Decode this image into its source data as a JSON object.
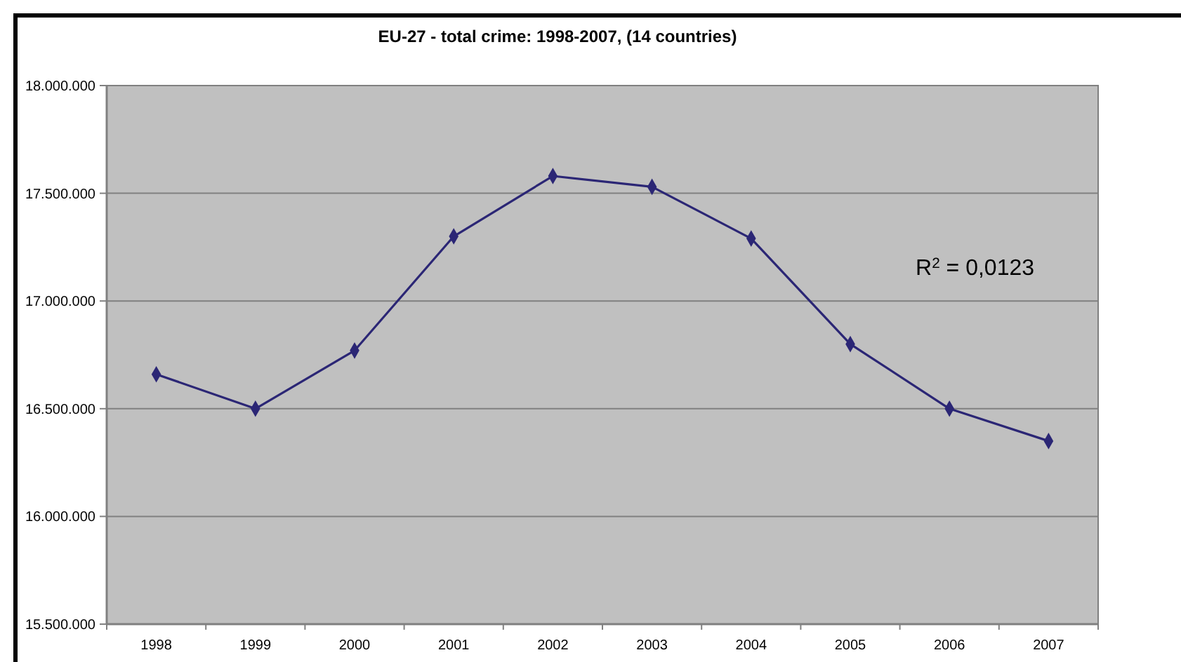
{
  "chart_data": {
    "type": "line",
    "title": "EU-27 - total crime: 1998-2007, (14 countries)",
    "categories": [
      "1998",
      "1999",
      "2000",
      "2001",
      "2002",
      "2003",
      "2004",
      "2005",
      "2006",
      "2007"
    ],
    "series": [
      {
        "color": "#2b2675",
        "values": [
          16660000,
          16500000,
          16770000,
          17300000,
          17580000,
          17530000,
          17290000,
          16800000,
          16500000,
          16350000
        ]
      }
    ],
    "ylim": [
      15500000,
      18000000
    ],
    "yticks": [
      {
        "value": 15500000,
        "label": "15.500.000"
      },
      {
        "value": 16000000,
        "label": "16.000.000"
      },
      {
        "value": 16500000,
        "label": "16.500.000"
      },
      {
        "value": 17000000,
        "label": "17.000.000"
      },
      {
        "value": 17500000,
        "label": "17.500.000"
      },
      {
        "value": 18000000,
        "label": "18.000.000"
      }
    ],
    "grid": "y",
    "marker": "diamond",
    "line_style": "solid",
    "annotations": [
      "R$^{2}$ = 0,0123"
    ]
  }
}
